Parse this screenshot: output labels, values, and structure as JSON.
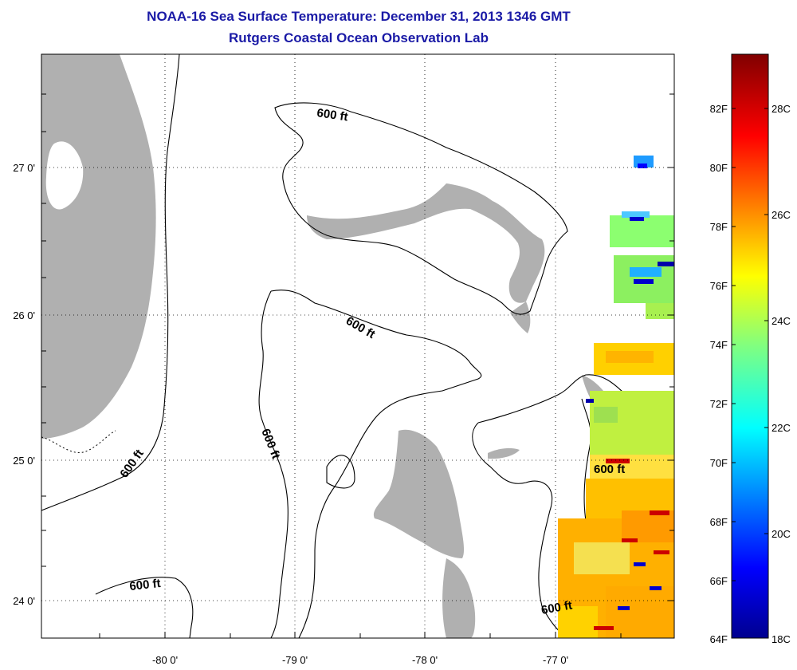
{
  "title": "NOAA-16 Sea Surface Temperature:  December 31, 2013 1346 GMT",
  "subtitle": "Rutgers Coastal Ocean Observation Lab",
  "map": {
    "longitude_labels": [
      "-80 0'",
      "-79 0'",
      "-78 0'",
      "-77 0'"
    ],
    "latitude_labels": [
      "27 0'",
      "26 0'",
      "25 0'",
      "24 0'"
    ],
    "contour_labels": [
      "600 ft",
      "600 ft",
      "600 ft",
      "600 ft",
      "600 ft",
      "600 ft"
    ],
    "land_color": "#b0b0b0"
  },
  "colorbar": {
    "fahrenheit_labels": [
      "82F",
      "80F",
      "78F",
      "76F",
      "74F",
      "72F",
      "70F",
      "68F",
      "66F",
      "64F"
    ],
    "celsius_labels": [
      "28C",
      "26C",
      "24C",
      "22C",
      "20C",
      "18C"
    ],
    "colormap": "jet"
  }
}
